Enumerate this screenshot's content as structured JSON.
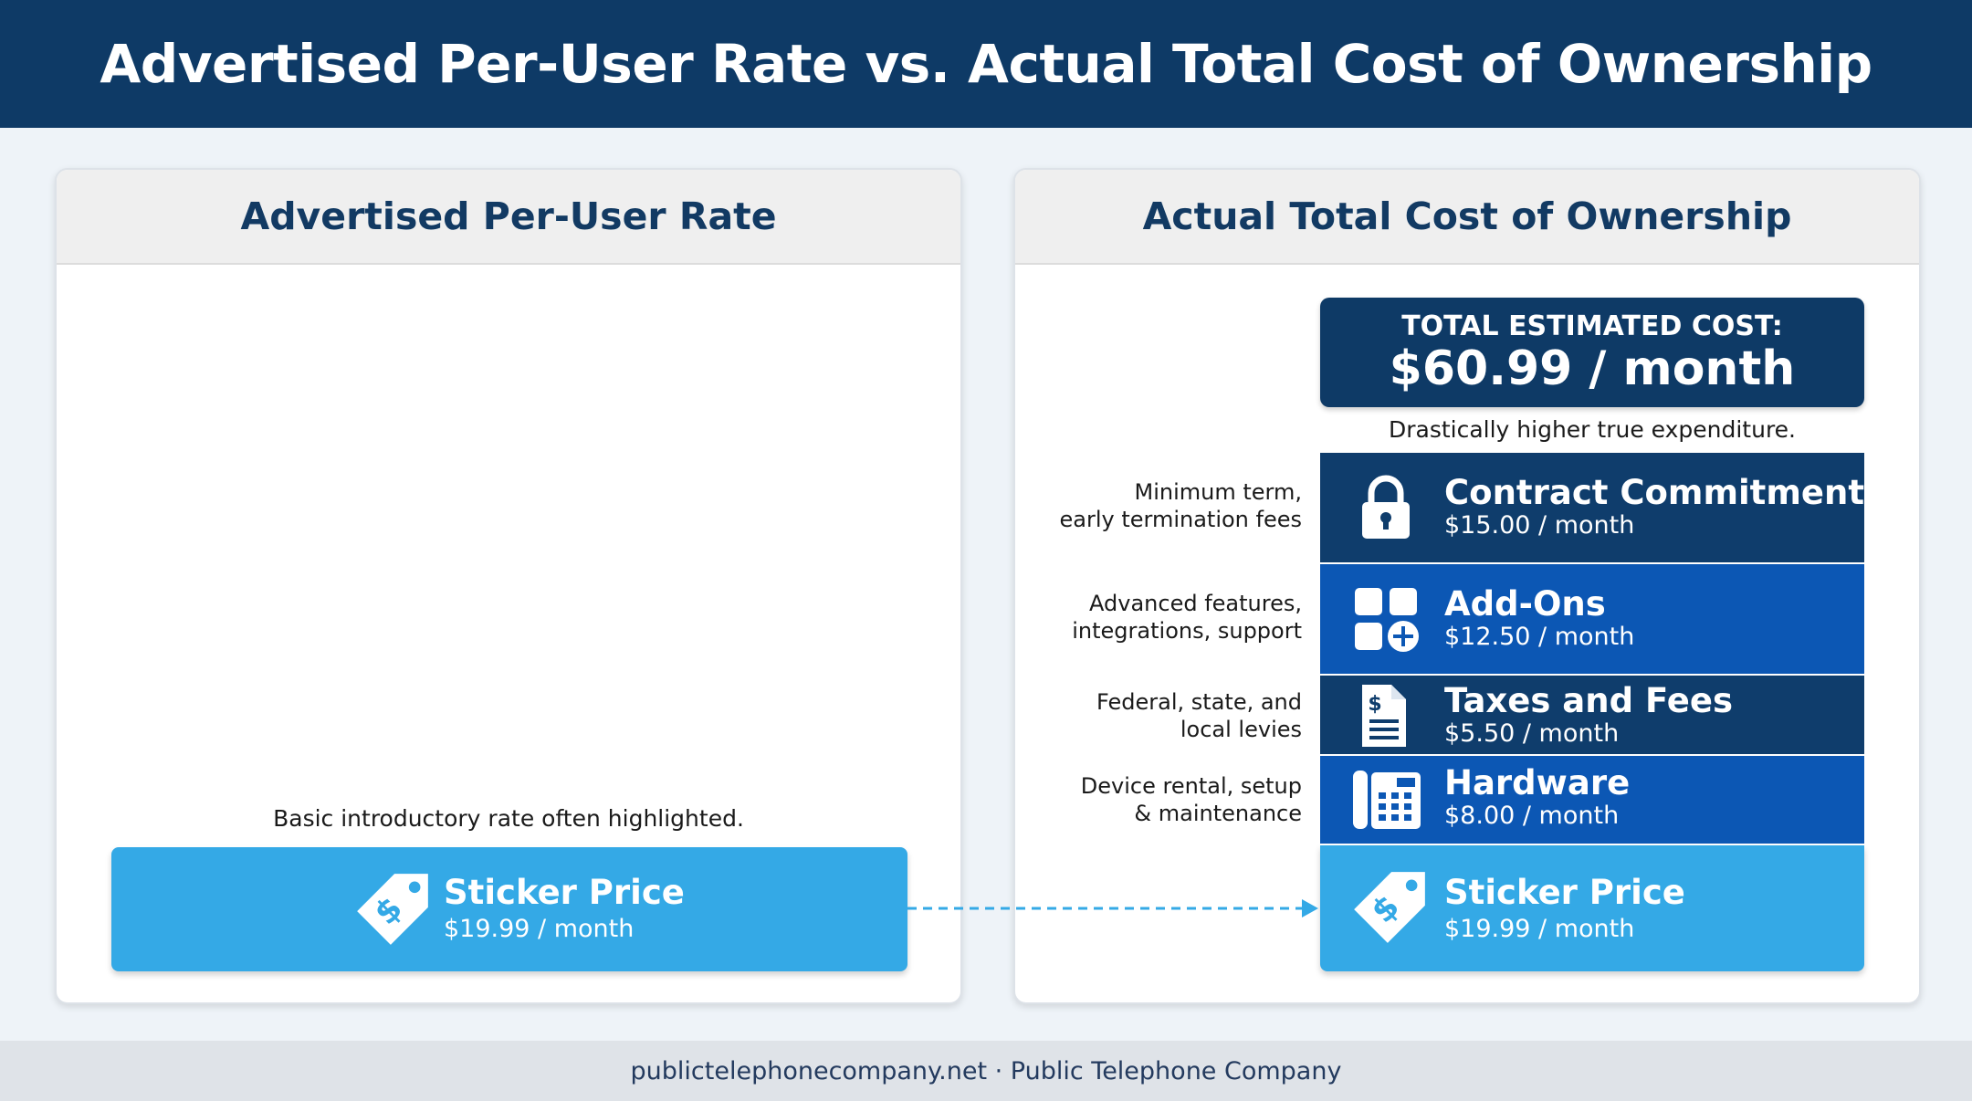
{
  "header": {
    "title": "Advertised Per-User Rate vs. Actual Total Cost of Ownership"
  },
  "left_panel": {
    "title": "Advertised Per-User Rate",
    "caption": "Basic introductory rate often highlighted.",
    "sticker": {
      "title": "Sticker Price",
      "price": "$19.99 / month",
      "icon": "price-tag-icon"
    }
  },
  "right_panel": {
    "title": "Actual Total Cost of Ownership",
    "total": {
      "label": "TOTAL ESTIMATED COST:",
      "value": "$60.99 / month"
    },
    "caption": "Drastically higher true expenditure.",
    "components": [
      {
        "title": "Contract Commitments",
        "price": "$15.00 / month",
        "desc_lines": [
          "Minimum term,",
          "early termination fees"
        ],
        "icon": "lock-icon",
        "color": "#0f3d6c"
      },
      {
        "title": "Add-Ons",
        "price": "$12.50 / month",
        "desc_lines": [
          "Advanced features,",
          "integrations, support"
        ],
        "icon": "add-ons-grid-icon",
        "color": "#0c57b4"
      },
      {
        "title": "Taxes and Fees",
        "price": "$5.50 / month",
        "desc_lines": [
          "Federal, state, and",
          "local levies"
        ],
        "icon": "tax-document-icon",
        "color": "#0f3d6c"
      },
      {
        "title": "Hardware",
        "price": "$8.00 / month",
        "desc_lines": [
          "Device rental, setup",
          "& maintenance"
        ],
        "icon": "desk-phone-icon",
        "color": "#0c57b4"
      },
      {
        "title": "Sticker Price",
        "price": "$19.99 / month",
        "desc_lines": [],
        "icon": "price-tag-icon",
        "color": "#34a9e6"
      }
    ]
  },
  "footer": {
    "text": "publictelephonecompany.net · Public Telephone Company"
  }
}
